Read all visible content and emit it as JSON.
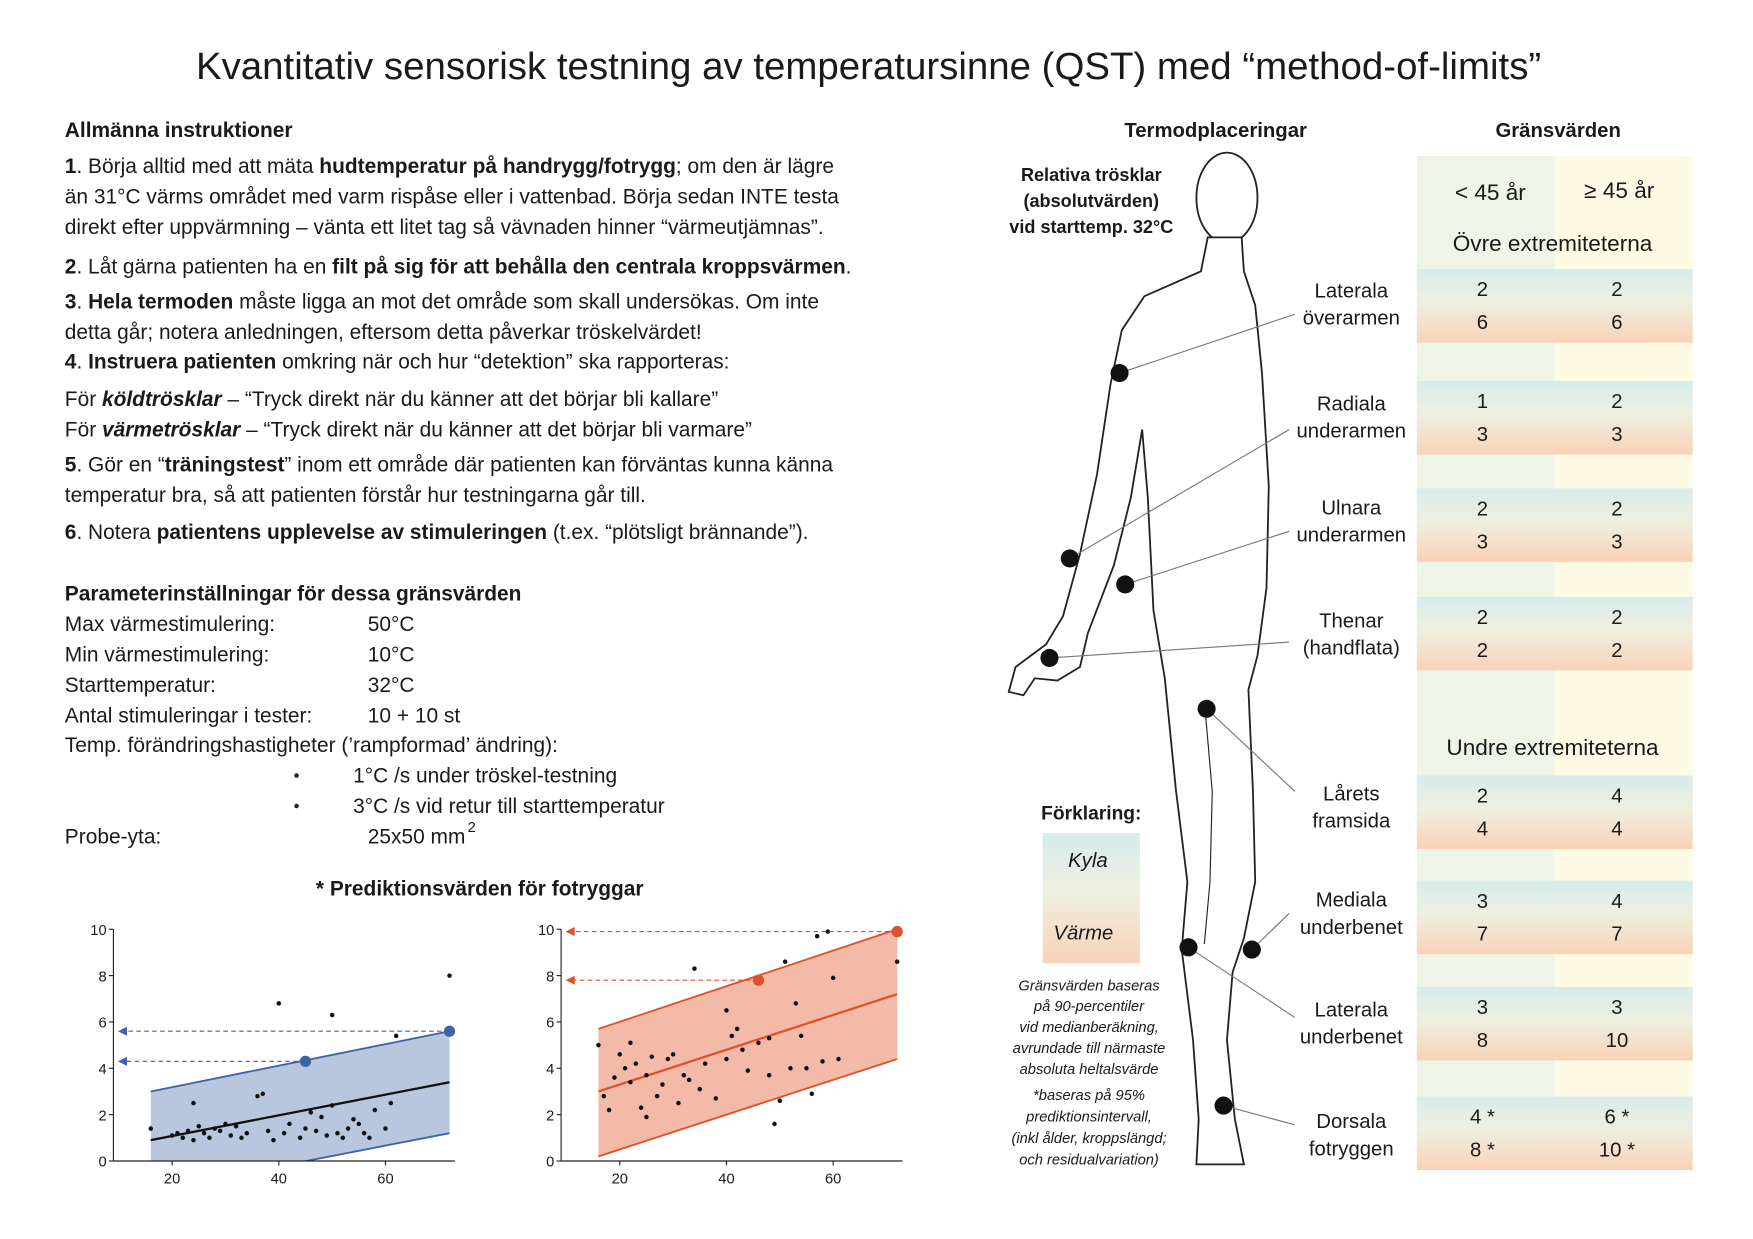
{
  "title": "Kvantitativ sensorisk testning av temperatursinne (QST) med “method-of-limits”",
  "instructions": {
    "heading": "Allmänna instruktioner",
    "paragraphs": [
      [
        [
          {
            "b": "1"
          },
          ". Börja alltid med att mäta ",
          {
            "b": "hudtemperatur på handrygg/fotrygg"
          },
          "; om den är lägre"
        ],
        [
          "än 31°C värms området med varm rispåse eller i vattenbad.  Börja sedan INTE testa"
        ],
        [
          "direkt efter uppvärmning – vänta ett litet tag så vävnaden hinner “värmeutjämnas”."
        ]
      ],
      [
        [
          {
            "b": "2"
          },
          ". Låt gärna patienten ha en ",
          {
            "b": "filt på sig för att behålla den centrala kroppsvärmen"
          },
          "."
        ]
      ],
      [
        [
          {
            "b": "3"
          },
          ". ",
          {
            "b": "Hela termoden"
          },
          " måste ligga an mot det område som skall undersökas. Om inte"
        ],
        [
          "detta går; notera anledningen, eftersom detta påverkar tröskelvärdet!"
        ]
      ],
      [
        [
          {
            "b": "4"
          },
          ". ",
          {
            "b": "Instruera patienten"
          },
          " omkring när och hur  “detektion” ska rapporteras:"
        ]
      ],
      [
        [
          "För ",
          {
            "bi": "köldtrösklar"
          },
          " – “Tryck direkt när du känner att det börjar bli kallare”"
        ],
        [
          "För ",
          {
            "bi": "värmetrösklar"
          },
          " – “Tryck direkt när du känner att det börjar bli varmare”"
        ]
      ],
      [
        [
          {
            "b": "5"
          },
          ". Gör en “",
          {
            "b": "träningstest"
          },
          "” inom ett område där patienten kan förväntas kunna känna"
        ],
        [
          "temperatur bra, så att patienten förstår hur testningarna går till."
        ]
      ],
      [
        [
          {
            "b": "6"
          },
          ". Notera ",
          {
            "b": "patientens upplevelse av stimuleringen"
          },
          " (t.ex. “plötsligt brännande”)."
        ]
      ]
    ]
  },
  "parameters": {
    "heading": "Parameterinställningar för dessa gränsvärden",
    "rows": [
      {
        "label": "Max värmestimulering:",
        "value": "50°C"
      },
      {
        "label": "Min värmestimulering:",
        "value": "10°C"
      },
      {
        "label": "Starttemperatur:",
        "value": "32°C"
      },
      {
        "label": "Antal stimuleringar i tester:",
        "value": "10 + 10 st"
      }
    ],
    "rate_label": "Temp. förändringshastigheter (’rampformad’ ändring):",
    "bullets": [
      "1°C /s  under tröskel-testning",
      "3°C /s  vid retur till starttemperatur"
    ],
    "probe": {
      "label": "Probe-yta:",
      "value": "25x50 mm",
      "sup": "2"
    }
  },
  "prediction_heading": "* Prediktionsvärden för fotryggar",
  "charts": [
    {
      "type": "scatter",
      "xlim": [
        9,
        73
      ],
      "ylim": [
        0,
        10
      ],
      "xticks": [
        20,
        40,
        60
      ],
      "yticks": [
        0,
        2,
        4,
        6,
        8,
        10
      ],
      "color": "#3d64a6",
      "band_color": "#b9c7de",
      "x": [
        16,
        20,
        21,
        22,
        23,
        24,
        24,
        25,
        26,
        27,
        28,
        29,
        30,
        31,
        32,
        33,
        34,
        36,
        37,
        38,
        39,
        40,
        41,
        42,
        44,
        45,
        46,
        47,
        48,
        49,
        50,
        50,
        51,
        52,
        53,
        54,
        55,
        56,
        57,
        58,
        60,
        61,
        62,
        72
      ],
      "y": [
        1.4,
        1.1,
        1.2,
        1.0,
        1.3,
        0.9,
        2.5,
        1.5,
        1.2,
        1.0,
        1.4,
        1.3,
        1.6,
        1.1,
        1.5,
        1.0,
        1.2,
        2.8,
        2.9,
        1.3,
        0.9,
        6.8,
        1.2,
        1.6,
        1.0,
        1.4,
        2.1,
        1.3,
        1.9,
        1.1,
        6.3,
        2.4,
        1.2,
        1.0,
        1.4,
        1.8,
        1.6,
        1.2,
        1.0,
        2.2,
        1.4,
        2.5,
        5.4,
        8.0
      ],
      "band": {
        "x": [
          16,
          72
        ],
        "upper": [
          3.0,
          5.6
        ],
        "lower": [
          -1.3,
          1.2
        ]
      },
      "fit": {
        "x": [
          16,
          72
        ],
        "y": [
          0.9,
          3.4
        ]
      },
      "highlight": {
        "x": [
          45,
          72
        ],
        "y": [
          4.3,
          5.6
        ]
      }
    },
    {
      "type": "scatter",
      "xlim": [
        9,
        73
      ],
      "ylim": [
        0,
        10
      ],
      "xticks": [
        20,
        40,
        60
      ],
      "yticks": [
        0,
        2,
        4,
        6,
        8,
        10
      ],
      "color": "#e0502e",
      "band_color": "#f4baa8",
      "x": [
        16,
        17,
        18,
        19,
        20,
        21,
        22,
        22,
        23,
        24,
        25,
        25,
        26,
        27,
        28,
        29,
        30,
        31,
        32,
        33,
        34,
        35,
        36,
        38,
        40,
        40,
        41,
        42,
        43,
        44,
        46,
        48,
        48,
        49,
        50,
        51,
        52,
        53,
        54,
        55,
        56,
        57,
        58,
        59,
        60,
        61,
        72
      ],
      "y": [
        5.0,
        2.8,
        2.2,
        3.6,
        4.6,
        4.0,
        3.4,
        5.1,
        4.2,
        2.3,
        3.7,
        1.9,
        4.5,
        2.8,
        3.3,
        4.4,
        4.6,
        2.5,
        3.7,
        3.5,
        8.3,
        3.1,
        4.2,
        2.7,
        6.5,
        4.4,
        5.4,
        5.7,
        4.8,
        3.9,
        5.1,
        5.3,
        3.7,
        1.6,
        2.6,
        8.6,
        4.0,
        6.8,
        5.4,
        4.0,
        2.9,
        9.7,
        4.3,
        9.9,
        7.9,
        4.4,
        8.6
      ],
      "band": {
        "x": [
          16,
          72
        ],
        "upper": [
          5.7,
          10.0
        ],
        "lower": [
          0.2,
          4.4
        ]
      },
      "fit": {
        "x": [
          16,
          72
        ],
        "y": [
          3.0,
          7.2
        ]
      },
      "highlight": {
        "x": [
          46,
          72
        ],
        "y": [
          7.8,
          9.9
        ]
      }
    }
  ],
  "placement": {
    "heading": "Termodplaceringar",
    "relative": [
      "Relativa trösklar",
      "(absolutvärden)",
      "vid starttemp. 32°C"
    ]
  },
  "limits": {
    "heading": "Gränsvärden",
    "groups": [
      "< 45 år",
      "≥ 45 år"
    ],
    "upper_section": "Övre extremiteterna",
    "lower_section": "Undre extremiteterna",
    "sites": [
      {
        "label": [
          "Laterala",
          "överarmen"
        ],
        "cold": [
          "2",
          "2"
        ],
        "warm": [
          "6",
          "6"
        ]
      },
      {
        "label": [
          "Radiala",
          "underarmen"
        ],
        "cold": [
          "1",
          "2"
        ],
        "warm": [
          "3",
          "3"
        ]
      },
      {
        "label": [
          "Ulnara",
          "underarmen"
        ],
        "cold": [
          "2",
          "2"
        ],
        "warm": [
          "3",
          "3"
        ]
      },
      {
        "label": [
          "Thenar",
          "(handflata)"
        ],
        "cold": [
          "2",
          "2"
        ],
        "warm": [
          "2",
          "2"
        ]
      },
      {
        "label": [
          "Lårets",
          "framsida"
        ],
        "cold": [
          "2",
          "4"
        ],
        "warm": [
          "4",
          "4"
        ]
      },
      {
        "label": [
          "Mediala",
          "underbenet"
        ],
        "cold": [
          "3",
          "4"
        ],
        "warm": [
          "7",
          "7"
        ]
      },
      {
        "label": [
          "Laterala",
          "underbenet"
        ],
        "cold": [
          "3",
          "3"
        ],
        "warm": [
          "8",
          "10"
        ]
      },
      {
        "label": [
          "Dorsala",
          "fotryggen"
        ],
        "cold": [
          "4 *",
          "6 *"
        ],
        "warm": [
          "8 *",
          "10 *"
        ]
      }
    ]
  },
  "legend": {
    "heading": "Förklaring:",
    "cold": "Kyla",
    "warm": "Värme",
    "note": [
      "Gränsvärden baseras",
      "på 90-percentiler",
      "vid medianberäkning,",
      "avrundade till närmaste",
      "absoluta heltalsvärde"
    ],
    "footnote": [
      "*baseras på 95%",
      "prediktionsintervall,",
      "(inkl ålder, kroppslängd;",
      "och residualvariation)"
    ]
  }
}
